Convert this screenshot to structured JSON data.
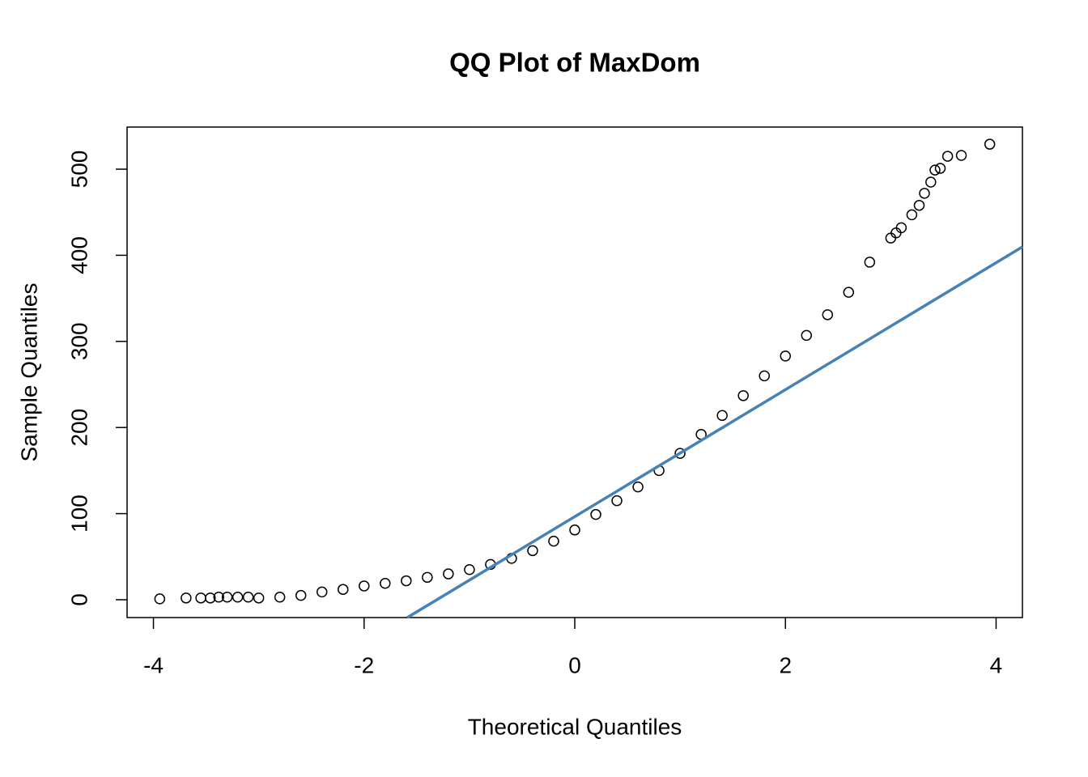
{
  "chart_data": {
    "type": "scatter",
    "title": "QQ Plot of MaxDom",
    "x_label": "Theoretical Quantiles",
    "y_label": "Sample Quantiles",
    "xlim": [
      -4.25,
      4.25
    ],
    "ylim": [
      -20.7,
      548.9
    ],
    "xticks": [
      -4,
      -2,
      0,
      2,
      4
    ],
    "yticks": [
      0,
      100,
      200,
      300,
      400,
      500
    ],
    "series": [
      {
        "color": "#000000",
        "x": [
          -3.94,
          -3.69,
          -3.55,
          -3.46,
          -3.38,
          -3.3,
          -3.2,
          -3.1,
          -3.0,
          -2.8,
          -2.6,
          -2.4,
          -2.2,
          -2.0,
          -1.8,
          -1.6,
          -1.4,
          -1.2,
          -1.0,
          -0.8,
          -0.6,
          -0.4,
          -0.2,
          0,
          0.2,
          0.4,
          0.6,
          0.8,
          1.0,
          1.2,
          1.4,
          1.6,
          1.8,
          2.0,
          2.2,
          2.4,
          2.6,
          2.8,
          3.0,
          3.05,
          3.1,
          3.2,
          3.27,
          3.32,
          3.38,
          3.42,
          3.47,
          3.54,
          3.67,
          3.94
        ],
        "y": [
          1,
          2,
          2,
          2,
          3,
          3,
          3,
          3,
          2,
          3,
          5,
          9,
          12,
          16,
          19,
          22,
          26,
          30,
          35,
          41,
          48,
          57,
          68,
          81,
          99,
          115,
          131,
          150,
          170,
          192,
          214,
          237,
          260,
          283,
          307,
          331,
          357,
          392,
          420,
          426,
          432,
          447,
          458,
          472,
          485,
          499,
          501,
          515,
          516,
          529
        ]
      }
    ],
    "reference_line": {
      "color": "#4682b4",
      "x": [
        -1.59,
        4.25
      ],
      "y": [
        -20.7,
        409.8
      ]
    }
  }
}
